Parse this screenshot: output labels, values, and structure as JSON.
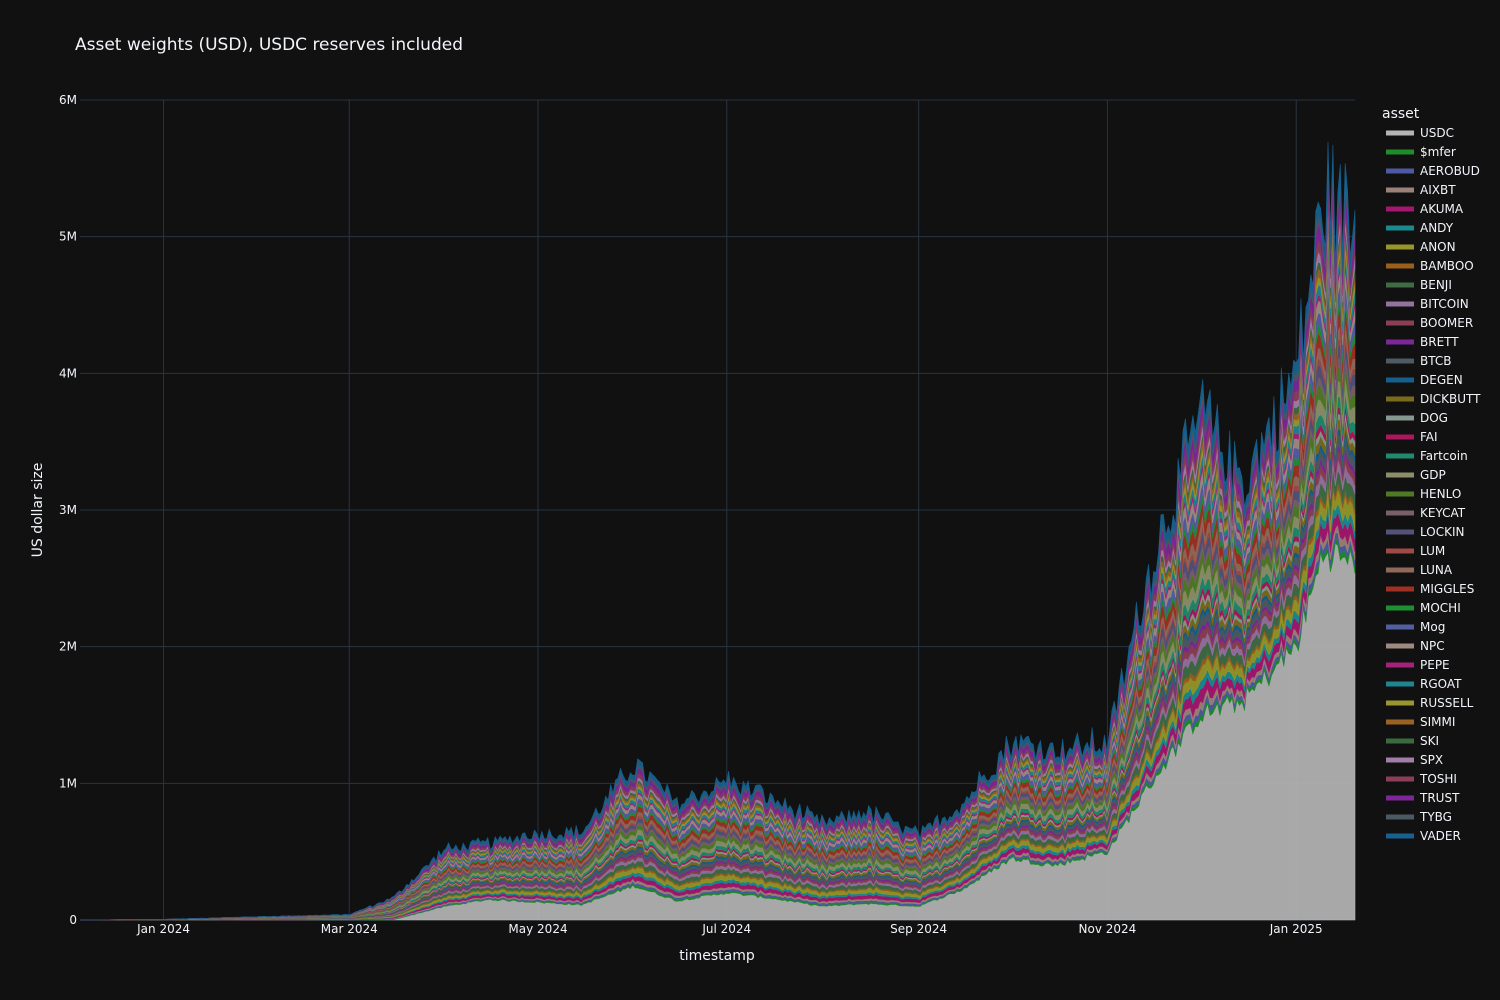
{
  "chart_data": {
    "type": "area",
    "title": "Asset weights (USD), USDC reserves included",
    "xlabel": "timestamp",
    "ylabel": "US dollar size",
    "legend_title": "asset",
    "legend_placement": "right",
    "grid": true,
    "x_range": [
      "2023-12-05",
      "2025-01-20"
    ],
    "ylim": [
      0,
      6000000
    ],
    "x_ticks": [
      {
        "date": "2024-01-01",
        "label": "Jan 2024"
      },
      {
        "date": "2024-03-01",
        "label": "Mar 2024"
      },
      {
        "date": "2024-05-01",
        "label": "May 2024"
      },
      {
        "date": "2024-07-01",
        "label": "Jul 2024"
      },
      {
        "date": "2024-09-01",
        "label": "Sep 2024"
      },
      {
        "date": "2024-11-01",
        "label": "Nov 2024"
      },
      {
        "date": "2025-01-01",
        "label": "Jan 2025"
      }
    ],
    "y_ticks": [
      {
        "value": 0,
        "label": "0"
      },
      {
        "value": 1000000,
        "label": "1M"
      },
      {
        "value": 2000000,
        "label": "2M"
      },
      {
        "value": 3000000,
        "label": "3M"
      },
      {
        "value": 4000000,
        "label": "4M"
      },
      {
        "value": 5000000,
        "label": "5M"
      },
      {
        "value": 6000000,
        "label": "6M"
      }
    ],
    "x": [
      "2023-12-05",
      "2024-01-01",
      "2024-02-01",
      "2024-03-01",
      "2024-03-15",
      "2024-04-01",
      "2024-04-15",
      "2024-05-01",
      "2024-05-15",
      "2024-06-01",
      "2024-06-15",
      "2024-07-01",
      "2024-07-15",
      "2024-08-01",
      "2024-08-15",
      "2024-09-01",
      "2024-09-15",
      "2024-10-01",
      "2024-10-15",
      "2024-11-01",
      "2024-11-15",
      "2024-12-01",
      "2024-12-15",
      "2025-01-01",
      "2025-01-10",
      "2025-01-20"
    ],
    "total": [
      0,
      5000,
      25000,
      40000,
      160000,
      520000,
      560000,
      640000,
      640000,
      1150000,
      850000,
      1020000,
      900000,
      700000,
      800000,
      620000,
      850000,
      1300000,
      1250000,
      1300000,
      2600000,
      3700000,
      3200000,
      4000000,
      5300000,
      5100000
    ],
    "usdc": [
      0,
      0,
      0,
      0,
      0,
      100000,
      150000,
      130000,
      110000,
      250000,
      140000,
      200000,
      160000,
      100000,
      120000,
      100000,
      220000,
      450000,
      400000,
      500000,
      1000000,
      1500000,
      1600000,
      2000000,
      2700000,
      2600000
    ],
    "series": [
      {
        "name": "USDC",
        "color": "#b5b5b5"
      },
      {
        "name": "$mfer",
        "color": "#1e8c2a"
      },
      {
        "name": "AEROBUD",
        "color": "#4d5aa3"
      },
      {
        "name": "AIXBT",
        "color": "#9b8277"
      },
      {
        "name": "AKUMA",
        "color": "#a3176e"
      },
      {
        "name": "ANDY",
        "color": "#1a8a8f"
      },
      {
        "name": "ANON",
        "color": "#96962a"
      },
      {
        "name": "BAMBOO",
        "color": "#9b5f1d"
      },
      {
        "name": "BENJI",
        "color": "#3f6c44"
      },
      {
        "name": "BITCOIN",
        "color": "#93729e"
      },
      {
        "name": "BOOMER",
        "color": "#8a4052"
      },
      {
        "name": "BRETT",
        "color": "#7c2697"
      },
      {
        "name": "BTCB",
        "color": "#4d5b62"
      },
      {
        "name": "DEGEN",
        "color": "#175e8a"
      },
      {
        "name": "DICKBUTT",
        "color": "#7a6a1c"
      },
      {
        "name": "DOG",
        "color": "#86998f"
      },
      {
        "name": "FAI",
        "color": "#a8185a"
      },
      {
        "name": "Fartcoin",
        "color": "#1f8a6e"
      },
      {
        "name": "GDP",
        "color": "#8c8f6a"
      },
      {
        "name": "HENLO",
        "color": "#4f7a25"
      },
      {
        "name": "KEYCAT",
        "color": "#78606b"
      },
      {
        "name": "LOCKIN",
        "color": "#52527a"
      },
      {
        "name": "LUM",
        "color": "#9e4b45"
      },
      {
        "name": "LUNA",
        "color": "#8f6a5b"
      },
      {
        "name": "MIGGLES",
        "color": "#9e3024"
      },
      {
        "name": "MOCHI",
        "color": "#1f8f35"
      },
      {
        "name": "Mog",
        "color": "#525ea0"
      },
      {
        "name": "NPC",
        "color": "#9e8a80"
      },
      {
        "name": "PEPE",
        "color": "#a3237a"
      },
      {
        "name": "RGOAT",
        "color": "#1f8590"
      },
      {
        "name": "RUSSELL",
        "color": "#9a9630"
      },
      {
        "name": "SIMMI",
        "color": "#9c6224"
      },
      {
        "name": "SKI",
        "color": "#3b6a40"
      },
      {
        "name": "SPX",
        "color": "#a07ea8"
      },
      {
        "name": "TOSHI",
        "color": "#8a3f57"
      },
      {
        "name": "TRUST",
        "color": "#7d2699"
      },
      {
        "name": "TYBG",
        "color": "#4a5a62"
      },
      {
        "name": "VADER",
        "color": "#17618f"
      }
    ]
  }
}
